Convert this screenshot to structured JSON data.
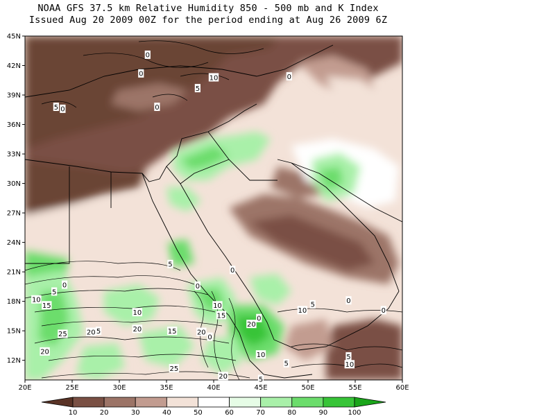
{
  "title": {
    "line1": "NOAA GFS 37.5 km Relative Humidity 850 - 500 mb and K Index",
    "line2": "Issued Aug 20 2009 00Z for the period ending at Aug 26 2009 6Z"
  },
  "map": {
    "lon_range": [
      20,
      60
    ],
    "lat_range": [
      10,
      45
    ],
    "lat_ticks": [
      "45N",
      "42N",
      "39N",
      "36N",
      "33N",
      "30N",
      "27N",
      "24N",
      "21N",
      "18N",
      "15N",
      "12N"
    ],
    "lon_ticks": [
      "20E",
      "25E",
      "30E",
      "35E",
      "40E",
      "45E",
      "50E",
      "55E",
      "60E"
    ],
    "k_index_labels": [
      {
        "text": "0",
        "lon": 33.0,
        "lat": 43.1
      },
      {
        "text": "0",
        "lon": 32.3,
        "lat": 41.2
      },
      {
        "text": "10",
        "lon": 40.0,
        "lat": 40.8
      },
      {
        "text": "0",
        "lon": 48.0,
        "lat": 40.9
      },
      {
        "text": "5",
        "lon": 38.3,
        "lat": 39.7
      },
      {
        "text": "5",
        "lon": 23.3,
        "lat": 37.8
      },
      {
        "text": "0",
        "lon": 24.0,
        "lat": 37.6
      },
      {
        "text": "0",
        "lon": 34.0,
        "lat": 37.8
      },
      {
        "text": "5",
        "lon": 35.4,
        "lat": 21.8
      },
      {
        "text": "0",
        "lon": 42.0,
        "lat": 21.2
      },
      {
        "text": "0",
        "lon": 24.2,
        "lat": 19.7
      },
      {
        "text": "5",
        "lon": 23.1,
        "lat": 19.0
      },
      {
        "text": "0",
        "lon": 38.3,
        "lat": 19.6
      },
      {
        "text": "10",
        "lon": 21.2,
        "lat": 18.2
      },
      {
        "text": "15",
        "lon": 22.3,
        "lat": 17.6
      },
      {
        "text": "10",
        "lon": 40.4,
        "lat": 17.6
      },
      {
        "text": "5",
        "lon": 50.5,
        "lat": 17.7
      },
      {
        "text": "0",
        "lon": 54.3,
        "lat": 18.1
      },
      {
        "text": "10",
        "lon": 49.4,
        "lat": 17.1
      },
      {
        "text": "0",
        "lon": 58.0,
        "lat": 17.1
      },
      {
        "text": "10",
        "lon": 31.9,
        "lat": 16.9
      },
      {
        "text": "15",
        "lon": 40.8,
        "lat": 16.6
      },
      {
        "text": "0",
        "lon": 44.8,
        "lat": 16.3
      },
      {
        "text": "20",
        "lon": 44.0,
        "lat": 15.7
      },
      {
        "text": "20",
        "lon": 31.9,
        "lat": 15.2
      },
      {
        "text": "15",
        "lon": 35.6,
        "lat": 15.0
      },
      {
        "text": "20",
        "lon": 38.7,
        "lat": 14.9
      },
      {
        "text": "20",
        "lon": 27.0,
        "lat": 14.9
      },
      {
        "text": "5",
        "lon": 27.8,
        "lat": 15.0
      },
      {
        "text": "25",
        "lon": 24.0,
        "lat": 14.7
      },
      {
        "text": "0",
        "lon": 39.6,
        "lat": 14.4
      },
      {
        "text": "20",
        "lon": 22.1,
        "lat": 12.9
      },
      {
        "text": "10",
        "lon": 45.0,
        "lat": 12.6
      },
      {
        "text": "5",
        "lon": 54.3,
        "lat": 12.4
      },
      {
        "text": "10",
        "lon": 54.4,
        "lat": 11.6
      },
      {
        "text": "5",
        "lon": 47.7,
        "lat": 11.7
      },
      {
        "text": "25",
        "lon": 35.8,
        "lat": 11.2
      },
      {
        "text": "20",
        "lon": 41.0,
        "lat": 10.4
      },
      {
        "text": "5",
        "lon": 45.0,
        "lat": 10.1
      }
    ]
  },
  "colorbar": {
    "labels": [
      "10",
      "20",
      "30",
      "40",
      "50",
      "60",
      "70",
      "80",
      "90",
      "100"
    ],
    "colors": [
      "#5a3326",
      "#7a5044",
      "#9c7467",
      "#c29c90",
      "#f3e2d8",
      "#ffffff",
      "#e6fce6",
      "#a9f0a9",
      "#6cdd6c",
      "#37c437",
      "#1aa51a"
    ]
  },
  "colors": {
    "dry_dark": "#6b4436",
    "dry_mid": "#9c7467",
    "dry_light": "#c29c90",
    "tan": "#f3e2d8",
    "moist_light": "#e6fce6",
    "moist_mid": "#a9f0a9",
    "moist_green": "#6cdd6c",
    "moist_dark": "#37c437"
  }
}
